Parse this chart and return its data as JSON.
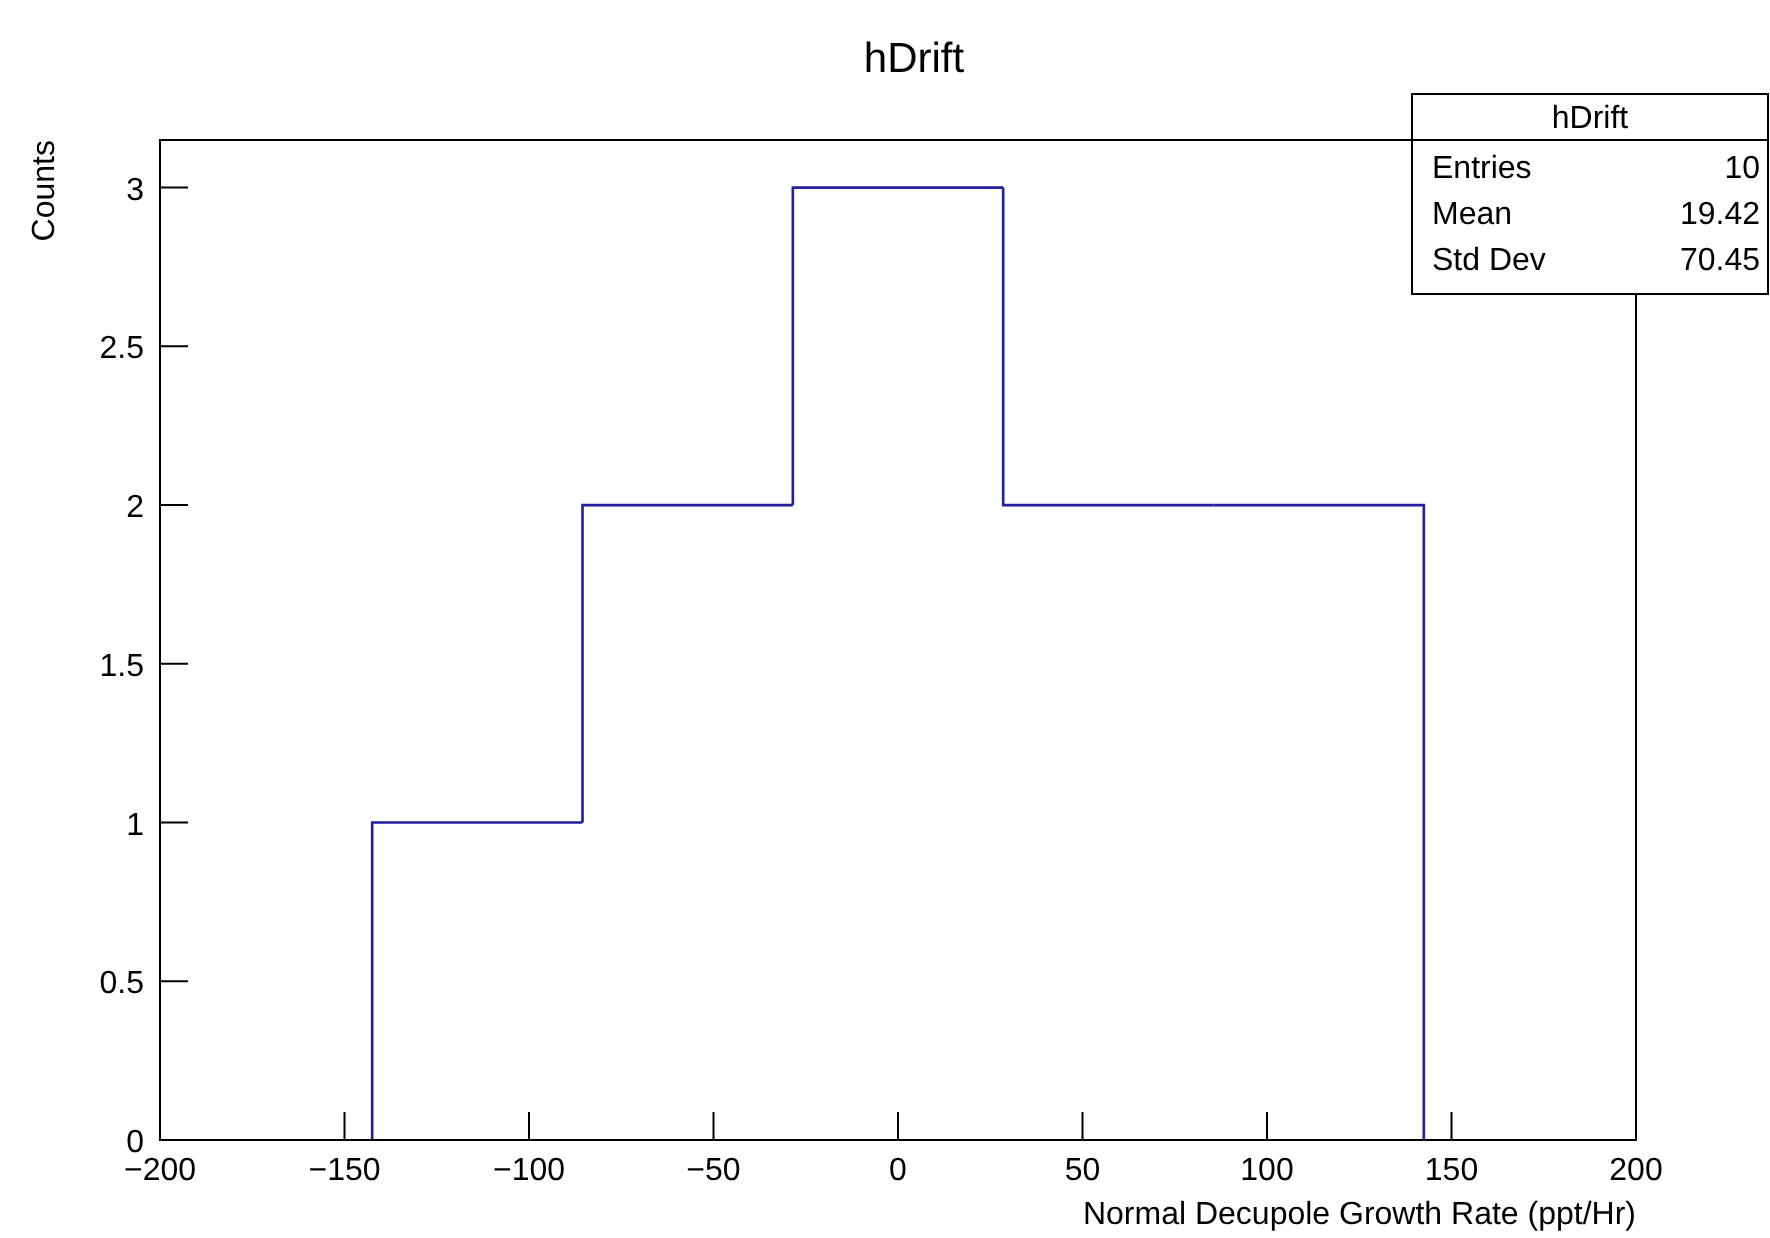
{
  "chart_data": {
    "type": "histogram",
    "title": "hDrift",
    "xlabel": "Normal Decupole Growth Rate (ppt/Hr)",
    "ylabel": "Counts",
    "bins": [
      -142.5,
      -85.5,
      -28.5,
      28.5,
      85.5,
      142.5
    ],
    "values": [
      1,
      2,
      3,
      2,
      2
    ],
    "color": "#1f1f9f",
    "xlim": [
      -200,
      200
    ],
    "xticks": [
      -200,
      -150,
      -100,
      -50,
      0,
      50,
      100,
      150,
      200
    ],
    "ylim": [
      0,
      3.15
    ],
    "yticks": [
      0,
      0.5,
      1,
      1.5,
      2,
      2.5,
      3
    ],
    "annotations": [
      "hDrift",
      "Entries",
      "10",
      "Mean",
      "19.42",
      "Std Dev",
      "70.45"
    ]
  }
}
